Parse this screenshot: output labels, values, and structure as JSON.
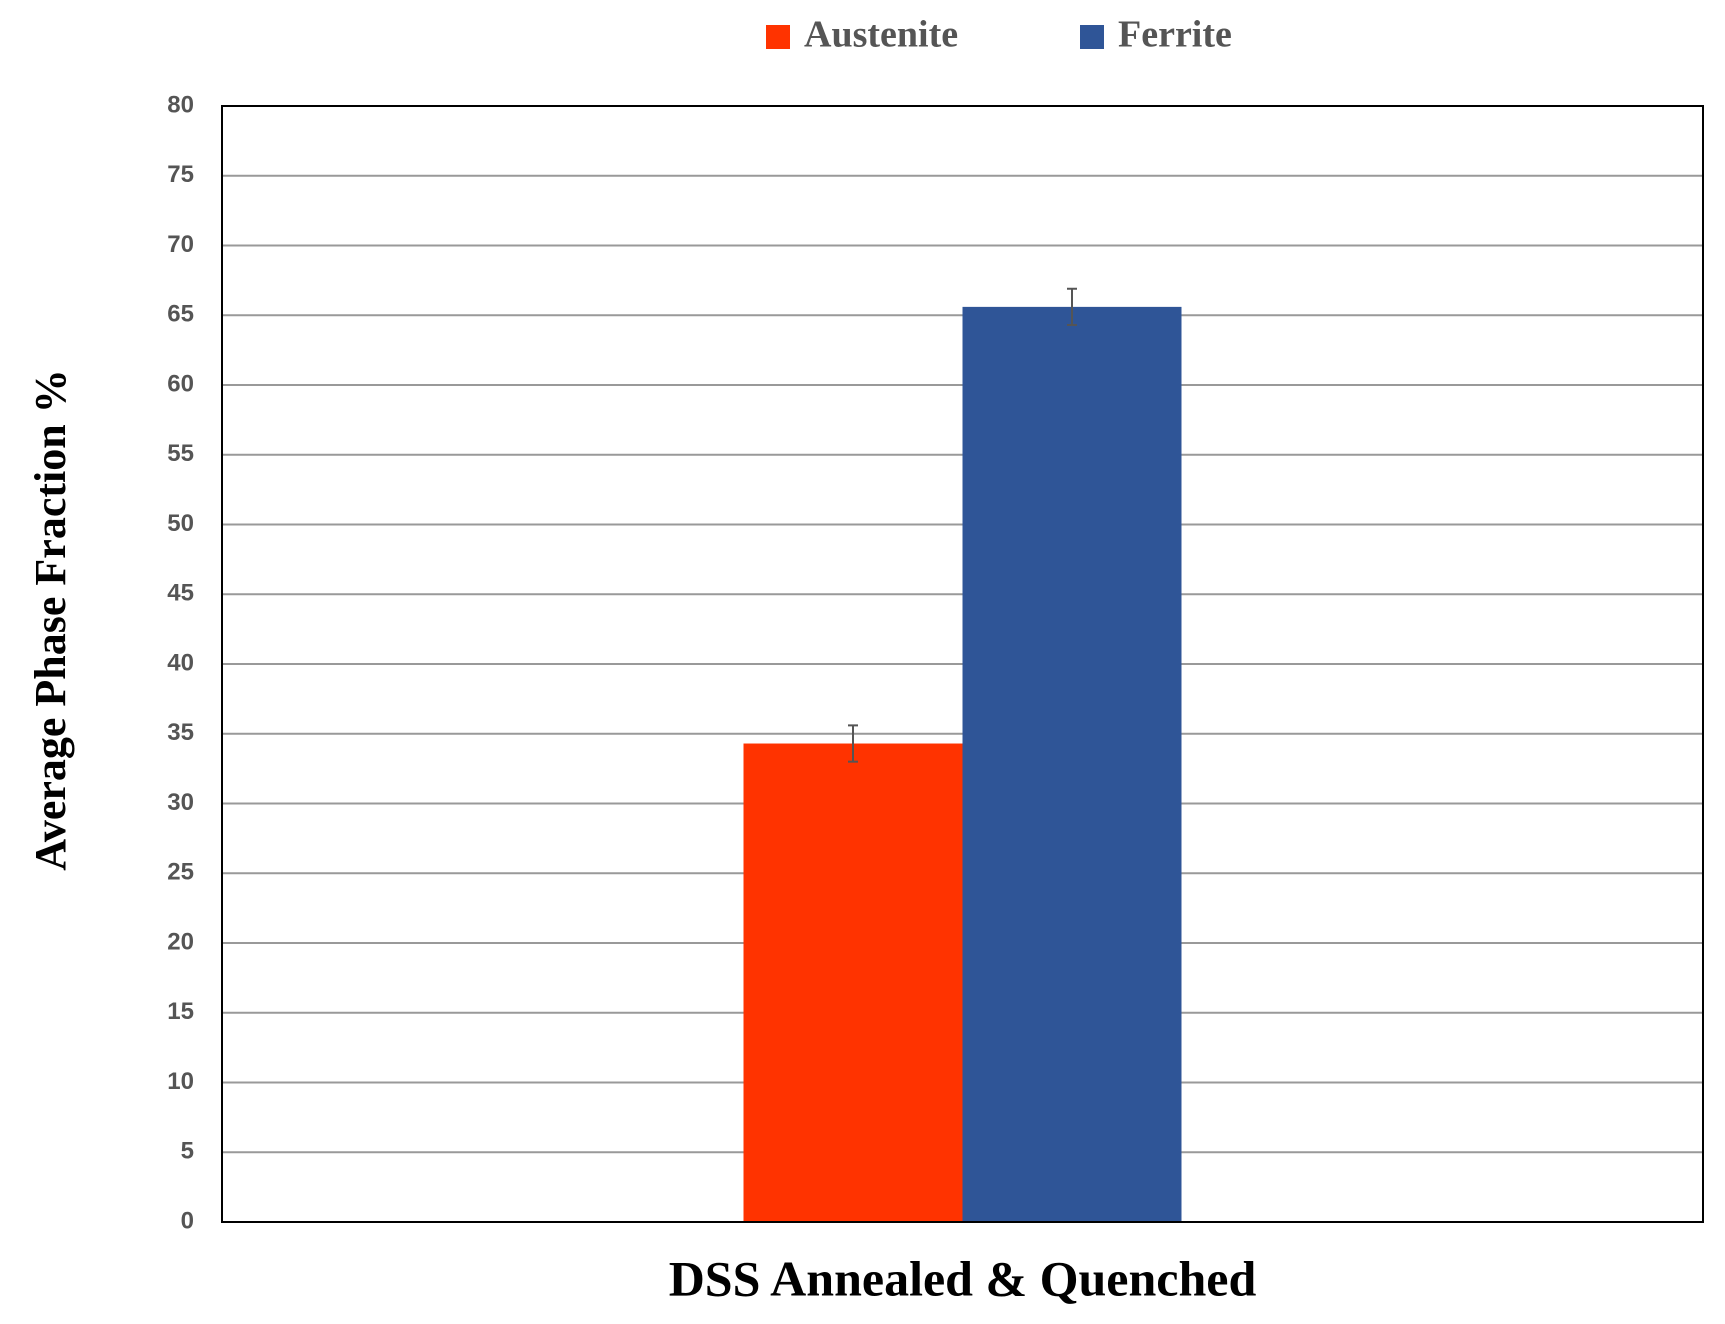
{
  "chart_data": {
    "type": "bar",
    "y_label": "Average Phase Fraction %",
    "categories": [
      "DSS Annealed & Quenched"
    ],
    "series": [
      {
        "name": "Austenite",
        "color": "#ff3300",
        "values": [
          34.3
        ],
        "errors": [
          1.3
        ]
      },
      {
        "name": "Ferrite",
        "color": "#2f5597",
        "values": [
          65.6
        ],
        "errors": [
          1.3
        ]
      }
    ],
    "ylim": [
      0,
      80
    ],
    "yticks": [
      0,
      5,
      10,
      15,
      20,
      25,
      30,
      35,
      40,
      45,
      50,
      55,
      60,
      65,
      70,
      75,
      80
    ],
    "grid": true,
    "legend": "top"
  }
}
